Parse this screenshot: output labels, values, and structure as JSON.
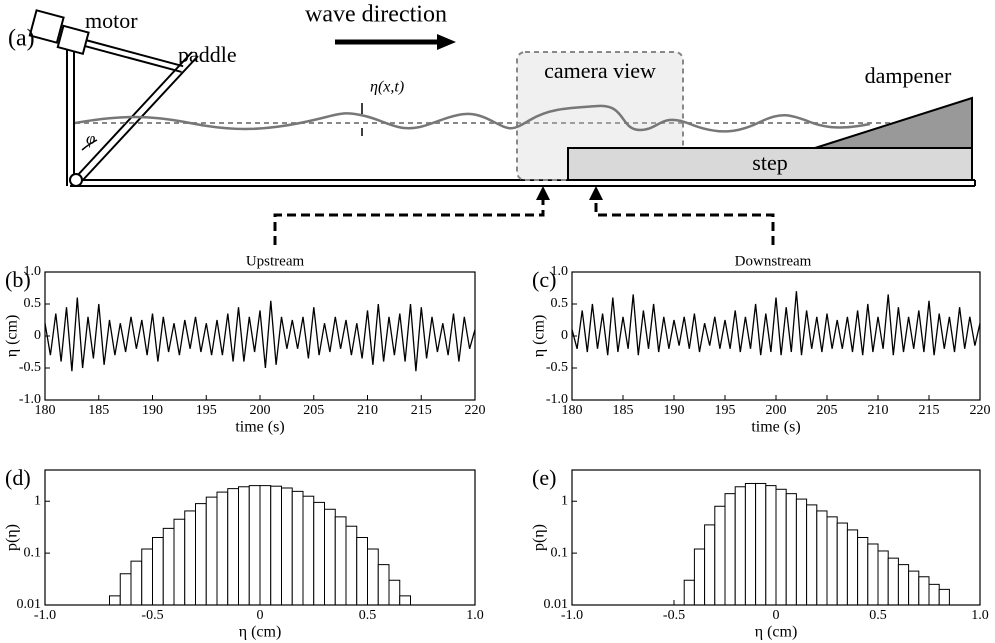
{
  "diagram": {
    "panel": "(a)",
    "motor": "motor",
    "paddle": "paddle",
    "wave_direction": "wave direction",
    "camera_view": "camera view",
    "dampener": "dampener",
    "step": "step",
    "eta": "η(x,t)",
    "phi": "φ",
    "upstream": "Upstream",
    "downstream": "Downstream"
  },
  "chart_data": [
    {
      "type": "line",
      "panel": "(b)",
      "xlabel": "time (s)",
      "ylabel": "η (cm)",
      "x": [
        180,
        180.5,
        181,
        181.5,
        182,
        182.5,
        183,
        183.5,
        184,
        184.5,
        185,
        185.5,
        186,
        186.5,
        187,
        187.5,
        188,
        188.5,
        189,
        189.5,
        190,
        190.5,
        191,
        191.5,
        192,
        192.5,
        193,
        193.5,
        194,
        194.5,
        195,
        195.5,
        196,
        196.5,
        197,
        197.5,
        198,
        198.5,
        199,
        199.5,
        200,
        200.5,
        201,
        201.5,
        202,
        202.5,
        203,
        203.5,
        204,
        204.5,
        205,
        205.5,
        206,
        206.5,
        207,
        207.5,
        208,
        208.5,
        209,
        209.5,
        210,
        210.5,
        211,
        211.5,
        212,
        212.5,
        213,
        213.5,
        214,
        214.5,
        215,
        215.5,
        216,
        216.5,
        217,
        217.5,
        218,
        218.5,
        219,
        219.5,
        220
      ],
      "series": [
        {
          "color": "#000000",
          "values": [
            0.2,
            -0.3,
            0.35,
            -0.4,
            0.45,
            -0.55,
            0.6,
            -0.5,
            0.3,
            -0.35,
            0.5,
            -0.45,
            0.25,
            -0.3,
            0.2,
            -0.25,
            0.3,
            -0.2,
            0.25,
            -0.3,
            0.35,
            -0.4,
            0.3,
            -0.25,
            0.2,
            -0.3,
            0.25,
            -0.2,
            0.3,
            -0.25,
            0.2,
            -0.3,
            0.25,
            -0.3,
            0.35,
            -0.4,
            0.45,
            -0.4,
            0.3,
            -0.25,
            0.4,
            -0.5,
            0.55,
            -0.45,
            0.3,
            -0.2,
            0.25,
            -0.2,
            0.3,
            -0.35,
            0.45,
            -0.3,
            0.2,
            -0.25,
            0.3,
            -0.2,
            0.25,
            -0.3,
            0.2,
            -0.35,
            0.4,
            -0.45,
            0.5,
            -0.4,
            0.3,
            -0.3,
            0.35,
            -0.4,
            0.5,
            -0.55,
            0.45,
            -0.35,
            0.3,
            -0.25,
            0.2,
            -0.3,
            0.35,
            -0.4,
            0.3,
            -0.2,
            0.1
          ]
        }
      ],
      "xlim": [
        180,
        220
      ],
      "xticks": [
        180,
        185,
        190,
        195,
        200,
        205,
        210,
        215,
        220
      ],
      "ylim": [
        -1,
        1
      ],
      "yticks": [
        {
          "value": -1,
          "label": "-1.0"
        },
        -0.5,
        0,
        0.5,
        {
          "value": 1,
          "label": "1.0"
        }
      ],
      "grid": false
    },
    {
      "type": "line",
      "panel": "(c)",
      "title": "",
      "xlabel": "time (s)",
      "ylabel": "η (cm)",
      "x": [
        180,
        180.5,
        181,
        181.5,
        182,
        182.5,
        183,
        183.5,
        184,
        184.5,
        185,
        185.5,
        186,
        186.5,
        187,
        187.5,
        188,
        188.5,
        189,
        189.5,
        190,
        190.5,
        191,
        191.5,
        192,
        192.5,
        193,
        193.5,
        194,
        194.5,
        195,
        195.5,
        196,
        196.5,
        197,
        197.5,
        198,
        198.5,
        199,
        199.5,
        200,
        200.5,
        201,
        201.5,
        202,
        202.5,
        203,
        203.5,
        204,
        204.5,
        205,
        205.5,
        206,
        206.5,
        207,
        207.5,
        208,
        208.5,
        209,
        209.5,
        210,
        210.5,
        211,
        211.5,
        212,
        212.5,
        213,
        213.5,
        214,
        214.5,
        215,
        215.5,
        216,
        216.5,
        217,
        217.5,
        218,
        218.5,
        219,
        219.5,
        220
      ],
      "series": [
        {
          "color": "#000000",
          "values": [
            0.1,
            -0.2,
            0.4,
            -0.25,
            0.5,
            -0.2,
            0.35,
            -0.3,
            0.6,
            -0.25,
            0.3,
            -0.2,
            0.65,
            -0.3,
            0.4,
            -0.2,
            0.5,
            -0.25,
            0.3,
            -0.2,
            0.25,
            -0.15,
            0.3,
            -0.2,
            0.35,
            -0.25,
            0.2,
            -0.15,
            0.3,
            -0.2,
            0.25,
            -0.2,
            0.4,
            -0.25,
            0.3,
            -0.2,
            0.5,
            -0.3,
            0.35,
            -0.25,
            0.6,
            -0.3,
            0.45,
            -0.25,
            0.7,
            -0.3,
            0.4,
            -0.2,
            0.3,
            -0.25,
            0.35,
            -0.2,
            0.25,
            -0.2,
            0.3,
            -0.25,
            0.4,
            -0.3,
            0.5,
            -0.25,
            0.3,
            -0.2,
            0.65,
            -0.3,
            0.45,
            -0.25,
            0.3,
            -0.2,
            0.4,
            -0.25,
            0.55,
            -0.3,
            0.35,
            -0.2,
            0.3,
            -0.25,
            0.45,
            -0.2,
            0.3,
            -0.15,
            0.2
          ]
        }
      ],
      "xlim": [
        180,
        220
      ],
      "xticks": [
        180,
        185,
        190,
        195,
        200,
        205,
        210,
        215,
        220
      ],
      "ylim": [
        -1,
        1
      ],
      "yticks": [
        {
          "value": -1,
          "label": "-1.0"
        },
        -0.5,
        0,
        0.5,
        {
          "value": 1,
          "label": "1.0"
        }
      ],
      "grid": false
    },
    {
      "type": "histogram",
      "panel": "(d)",
      "xlabel": "η (cm)",
      "ylabel": "p(η)",
      "color": "#ffffff",
      "edgecolor": "#000000",
      "bins": [
        -0.7,
        -0.65,
        -0.6,
        -0.55,
        -0.5,
        -0.45,
        -0.4,
        -0.35,
        -0.3,
        -0.25,
        -0.2,
        -0.15,
        -0.1,
        -0.05,
        0,
        0.05,
        0.1,
        0.15,
        0.2,
        0.25,
        0.3,
        0.35,
        0.4,
        0.45,
        0.5,
        0.55,
        0.6,
        0.65,
        0.7
      ],
      "values": [
        0.015,
        0.04,
        0.07,
        0.12,
        0.2,
        0.3,
        0.45,
        0.65,
        0.9,
        1.2,
        1.5,
        1.75,
        1.9,
        2.0,
        2.0,
        1.95,
        1.8,
        1.55,
        1.25,
        0.95,
        0.7,
        0.5,
        0.33,
        0.2,
        0.12,
        0.06,
        0.03,
        0.015
      ],
      "xlim": [
        -1,
        1
      ],
      "xticks": [
        {
          "value": -1,
          "label": "-1.0"
        },
        -0.5,
        0,
        0.5,
        {
          "value": 1,
          "label": "1.0"
        }
      ],
      "ylim": [
        0.01,
        4
      ],
      "yticks": [
        0.01,
        0.1,
        1
      ],
      "log_y": true,
      "grid": false
    },
    {
      "type": "histogram",
      "panel": "(e)",
      "xlabel": "η (cm)",
      "ylabel": "p(η)",
      "color": "#ffffff",
      "edgecolor": "#000000",
      "bins": [
        -0.45,
        -0.4,
        -0.35,
        -0.3,
        -0.25,
        -0.2,
        -0.15,
        -0.1,
        -0.05,
        0,
        0.05,
        0.1,
        0.15,
        0.2,
        0.25,
        0.3,
        0.35,
        0.4,
        0.45,
        0.5,
        0.55,
        0.6,
        0.65,
        0.7,
        0.75,
        0.8,
        0.85
      ],
      "values": [
        0.03,
        0.12,
        0.35,
        0.8,
        1.4,
        1.9,
        2.2,
        2.2,
        2.0,
        1.7,
        1.4,
        1.1,
        0.85,
        0.65,
        0.5,
        0.38,
        0.28,
        0.2,
        0.15,
        0.11,
        0.08,
        0.06,
        0.045,
        0.035,
        0.025,
        0.02
      ],
      "xlim": [
        -1,
        1
      ],
      "xticks": [
        {
          "value": -1,
          "label": "-1.0"
        },
        -0.5,
        0,
        0.5,
        {
          "value": 1,
          "label": "1.0"
        }
      ],
      "ylim": [
        0.01,
        4
      ],
      "yticks": [
        0.01,
        0.1,
        1
      ],
      "log_y": true,
      "grid": false
    }
  ]
}
